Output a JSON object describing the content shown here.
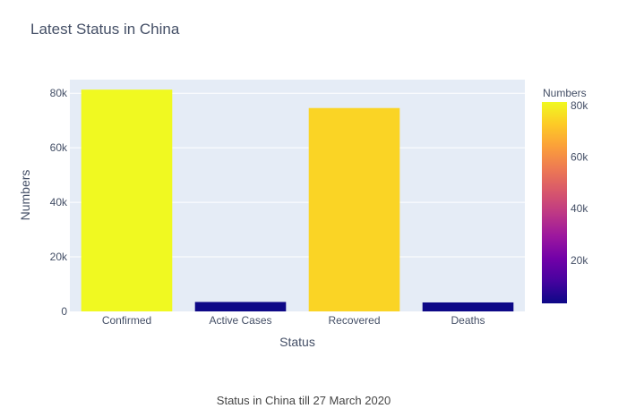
{
  "chart_data": {
    "type": "bar",
    "title": "Latest Status in China",
    "xlabel": "Status",
    "ylabel": "Numbers",
    "categories": [
      "Confirmed",
      "Active Cases",
      "Recovered",
      "Deaths"
    ],
    "values": [
      81340,
      3460,
      74590,
      3290
    ],
    "ylim": [
      0,
      85000
    ],
    "yticks": [
      0,
      20000,
      40000,
      60000,
      80000
    ],
    "ytick_labels": [
      "0",
      "20k",
      "40k",
      "60k",
      "80k"
    ],
    "grid": true,
    "colorbar": {
      "title": "Numbers",
      "range": [
        3290,
        81340
      ],
      "ticks": [
        20000,
        40000,
        60000,
        80000
      ],
      "tick_labels": [
        "20k",
        "40k",
        "60k",
        "80k"
      ],
      "colorscale": [
        "#0d0887",
        "#46039f",
        "#7201a8",
        "#9c179e",
        "#bd3786",
        "#d8576b",
        "#ed7953",
        "#fb9f3a",
        "#fdca26",
        "#f0f921"
      ]
    },
    "plot_background": "#e5ecf6"
  },
  "annotation": "Status in China till 27 March 2020"
}
